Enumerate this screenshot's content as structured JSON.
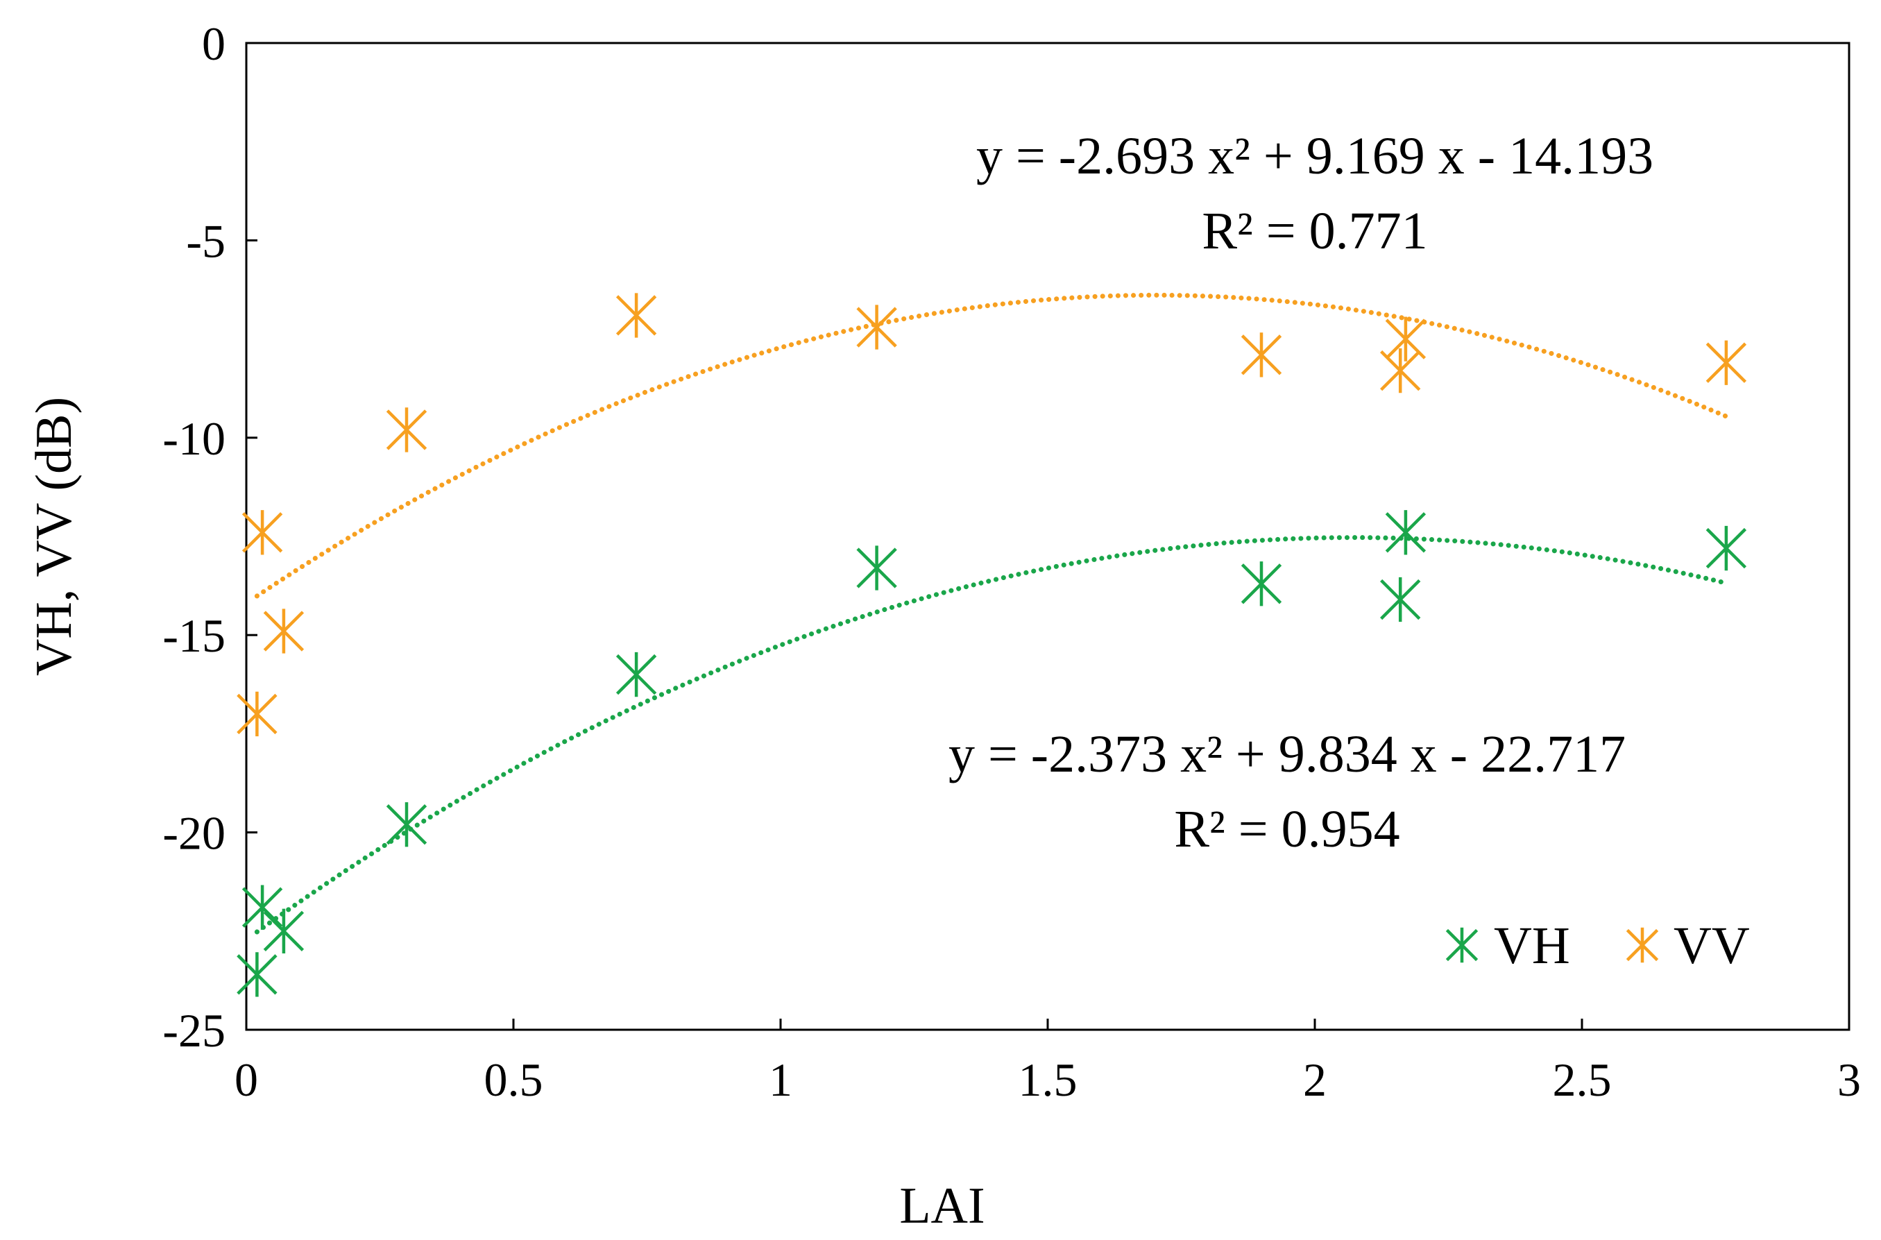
{
  "chart_data": {
    "type": "scatter",
    "title": "",
    "xlabel": "LAI",
    "ylabel": "VH, VV (dB)",
    "xlim": [
      0,
      3
    ],
    "ylim": [
      -25,
      0
    ],
    "xticks": [
      0,
      0.5,
      1,
      1.5,
      2,
      2.5,
      3
    ],
    "xtick_labels": [
      "0",
      "0.5",
      "1",
      "1.5",
      "2",
      "2.5",
      "3"
    ],
    "yticks": [
      0,
      -5,
      -10,
      -15,
      -20,
      -25
    ],
    "ytick_labels": [
      "0",
      "-5",
      "-10",
      "-15",
      "-20",
      "-25"
    ],
    "grid": false,
    "legend_position": "bottom-right",
    "series": [
      {
        "name": "VH",
        "color": "#1aa64a",
        "marker": "star-cross",
        "points": [
          {
            "x": 0.02,
            "y": -23.6
          },
          {
            "x": 0.03,
            "y": -21.9
          },
          {
            "x": 0.07,
            "y": -22.5
          },
          {
            "x": 0.3,
            "y": -19.8
          },
          {
            "x": 0.73,
            "y": -16.0
          },
          {
            "x": 1.18,
            "y": -13.3
          },
          {
            "x": 1.9,
            "y": -13.7
          },
          {
            "x": 2.16,
            "y": -14.1
          },
          {
            "x": 2.17,
            "y": -12.4
          },
          {
            "x": 2.77,
            "y": -12.8
          }
        ],
        "trendline": {
          "type": "polynomial",
          "order": 2,
          "coefficients": [
            -2.373,
            9.834,
            -22.717
          ],
          "x_range": [
            0.02,
            2.77
          ],
          "equation": "y = -2.373 x² + 9.834 x - 22.717",
          "r2": "R² = 0.954"
        }
      },
      {
        "name": "VV",
        "color": "#f7a020",
        "marker": "star-cross",
        "points": [
          {
            "x": 0.02,
            "y": -17.0
          },
          {
            "x": 0.03,
            "y": -12.4
          },
          {
            "x": 0.07,
            "y": -14.9
          },
          {
            "x": 0.3,
            "y": -9.8
          },
          {
            "x": 0.73,
            "y": -6.9
          },
          {
            "x": 1.18,
            "y": -7.2
          },
          {
            "x": 1.9,
            "y": -7.9
          },
          {
            "x": 2.16,
            "y": -8.3
          },
          {
            "x": 2.17,
            "y": -7.5
          },
          {
            "x": 2.77,
            "y": -8.1
          }
        ],
        "trendline": {
          "type": "polynomial",
          "order": 2,
          "coefficients": [
            -2.693,
            9.169,
            -14.193
          ],
          "x_range": [
            0.02,
            2.77
          ],
          "equation": "y = -2.693 x² + 9.169 x - 14.193",
          "r2": "R² = 0.771"
        }
      }
    ],
    "legend": [
      {
        "label": "VH",
        "color": "#1aa64a"
      },
      {
        "label": "VV",
        "color": "#f7a020"
      }
    ]
  }
}
